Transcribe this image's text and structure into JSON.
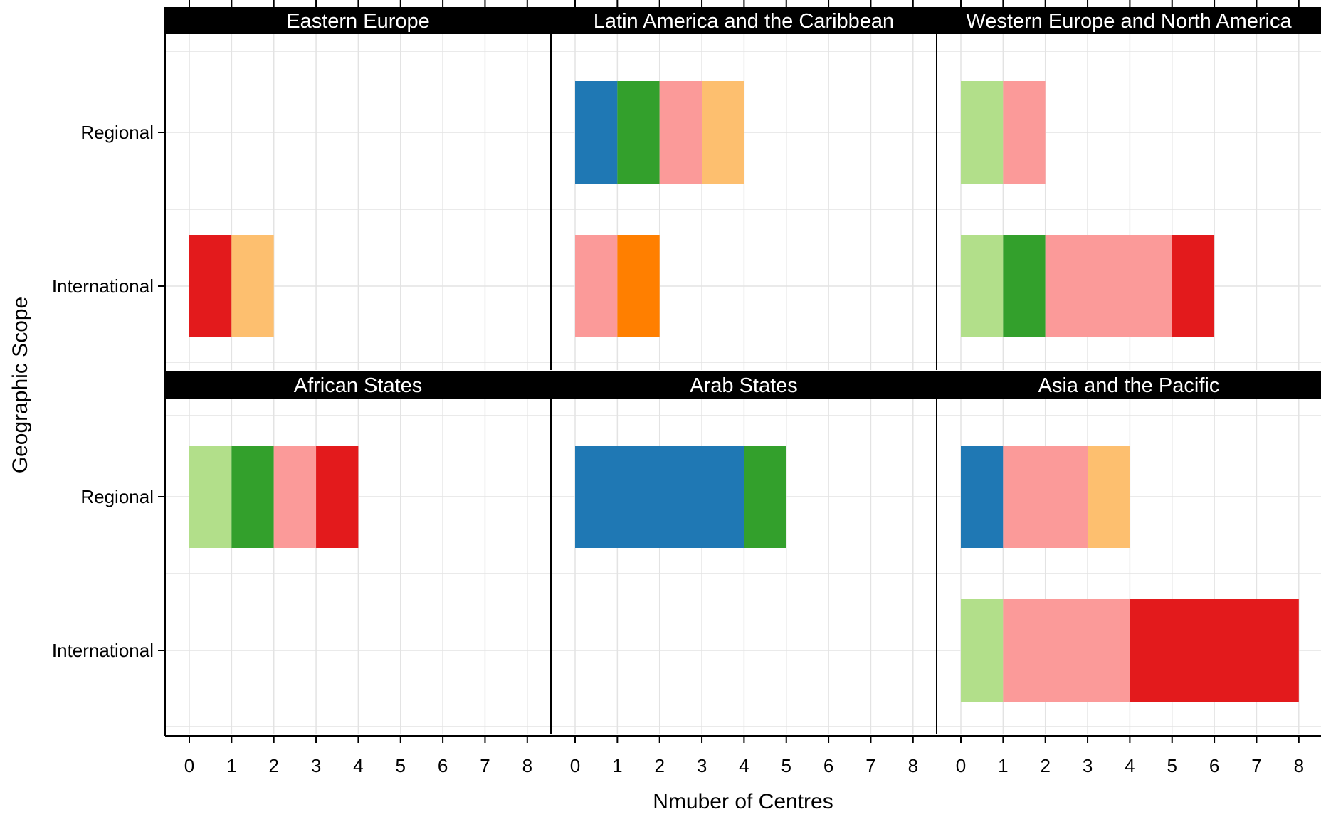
{
  "chart_data": {
    "type": "bar",
    "orientation": "horizontal",
    "stacked": true,
    "title": "",
    "xlabel": "Nmuber of Centres",
    "ylabel": "Geographic Scope",
    "xlim": [
      0,
      8
    ],
    "xticks": [
      "0",
      "1",
      "2",
      "3",
      "4",
      "5",
      "6",
      "7",
      "8"
    ],
    "categories": [
      "Regional",
      "International"
    ],
    "grid": true,
    "legend": "none",
    "colors": [
      "#1f78b4",
      "#33a02c",
      "#b2df8a",
      "#fb9a99",
      "#e31a1c",
      "#fdbf6f",
      "#ff7f00"
    ],
    "panels": [
      {
        "title": "Eastern Europe",
        "bars": [
          {
            "category": "Regional",
            "segments": []
          },
          {
            "category": "International",
            "segments": [
              {
                "color": "#e31a1c",
                "value": 1
              },
              {
                "color": "#fdbf6f",
                "value": 1
              }
            ]
          }
        ]
      },
      {
        "title": "Latin America and the Caribbean",
        "bars": [
          {
            "category": "Regional",
            "segments": [
              {
                "color": "#1f78b4",
                "value": 1
              },
              {
                "color": "#33a02c",
                "value": 1
              },
              {
                "color": "#fb9a99",
                "value": 1
              },
              {
                "color": "#fdbf6f",
                "value": 1
              }
            ]
          },
          {
            "category": "International",
            "segments": [
              {
                "color": "#fb9a99",
                "value": 1
              },
              {
                "color": "#ff7f00",
                "value": 1
              }
            ]
          }
        ]
      },
      {
        "title": "Western Europe and North America",
        "bars": [
          {
            "category": "Regional",
            "segments": [
              {
                "color": "#b2df8a",
                "value": 1
              },
              {
                "color": "#fb9a99",
                "value": 1
              }
            ]
          },
          {
            "category": "International",
            "segments": [
              {
                "color": "#b2df8a",
                "value": 1
              },
              {
                "color": "#33a02c",
                "value": 1
              },
              {
                "color": "#fb9a99",
                "value": 3
              },
              {
                "color": "#e31a1c",
                "value": 1
              }
            ]
          }
        ]
      },
      {
        "title": "African States",
        "bars": [
          {
            "category": "Regional",
            "segments": [
              {
                "color": "#b2df8a",
                "value": 1
              },
              {
                "color": "#33a02c",
                "value": 1
              },
              {
                "color": "#fb9a99",
                "value": 1
              },
              {
                "color": "#e31a1c",
                "value": 1
              }
            ]
          },
          {
            "category": "International",
            "segments": []
          }
        ]
      },
      {
        "title": "Arab States",
        "bars": [
          {
            "category": "Regional",
            "segments": [
              {
                "color": "#1f78b4",
                "value": 4
              },
              {
                "color": "#33a02c",
                "value": 1
              }
            ]
          },
          {
            "category": "International",
            "segments": []
          }
        ]
      },
      {
        "title": "Asia and the Pacific",
        "bars": [
          {
            "category": "Regional",
            "segments": [
              {
                "color": "#1f78b4",
                "value": 1
              },
              {
                "color": "#fb9a99",
                "value": 2
              },
              {
                "color": "#fdbf6f",
                "value": 1
              }
            ]
          },
          {
            "category": "International",
            "segments": [
              {
                "color": "#b2df8a",
                "value": 1
              },
              {
                "color": "#fb9a99",
                "value": 3
              },
              {
                "color": "#e31a1c",
                "value": 4
              }
            ]
          }
        ]
      }
    ]
  }
}
